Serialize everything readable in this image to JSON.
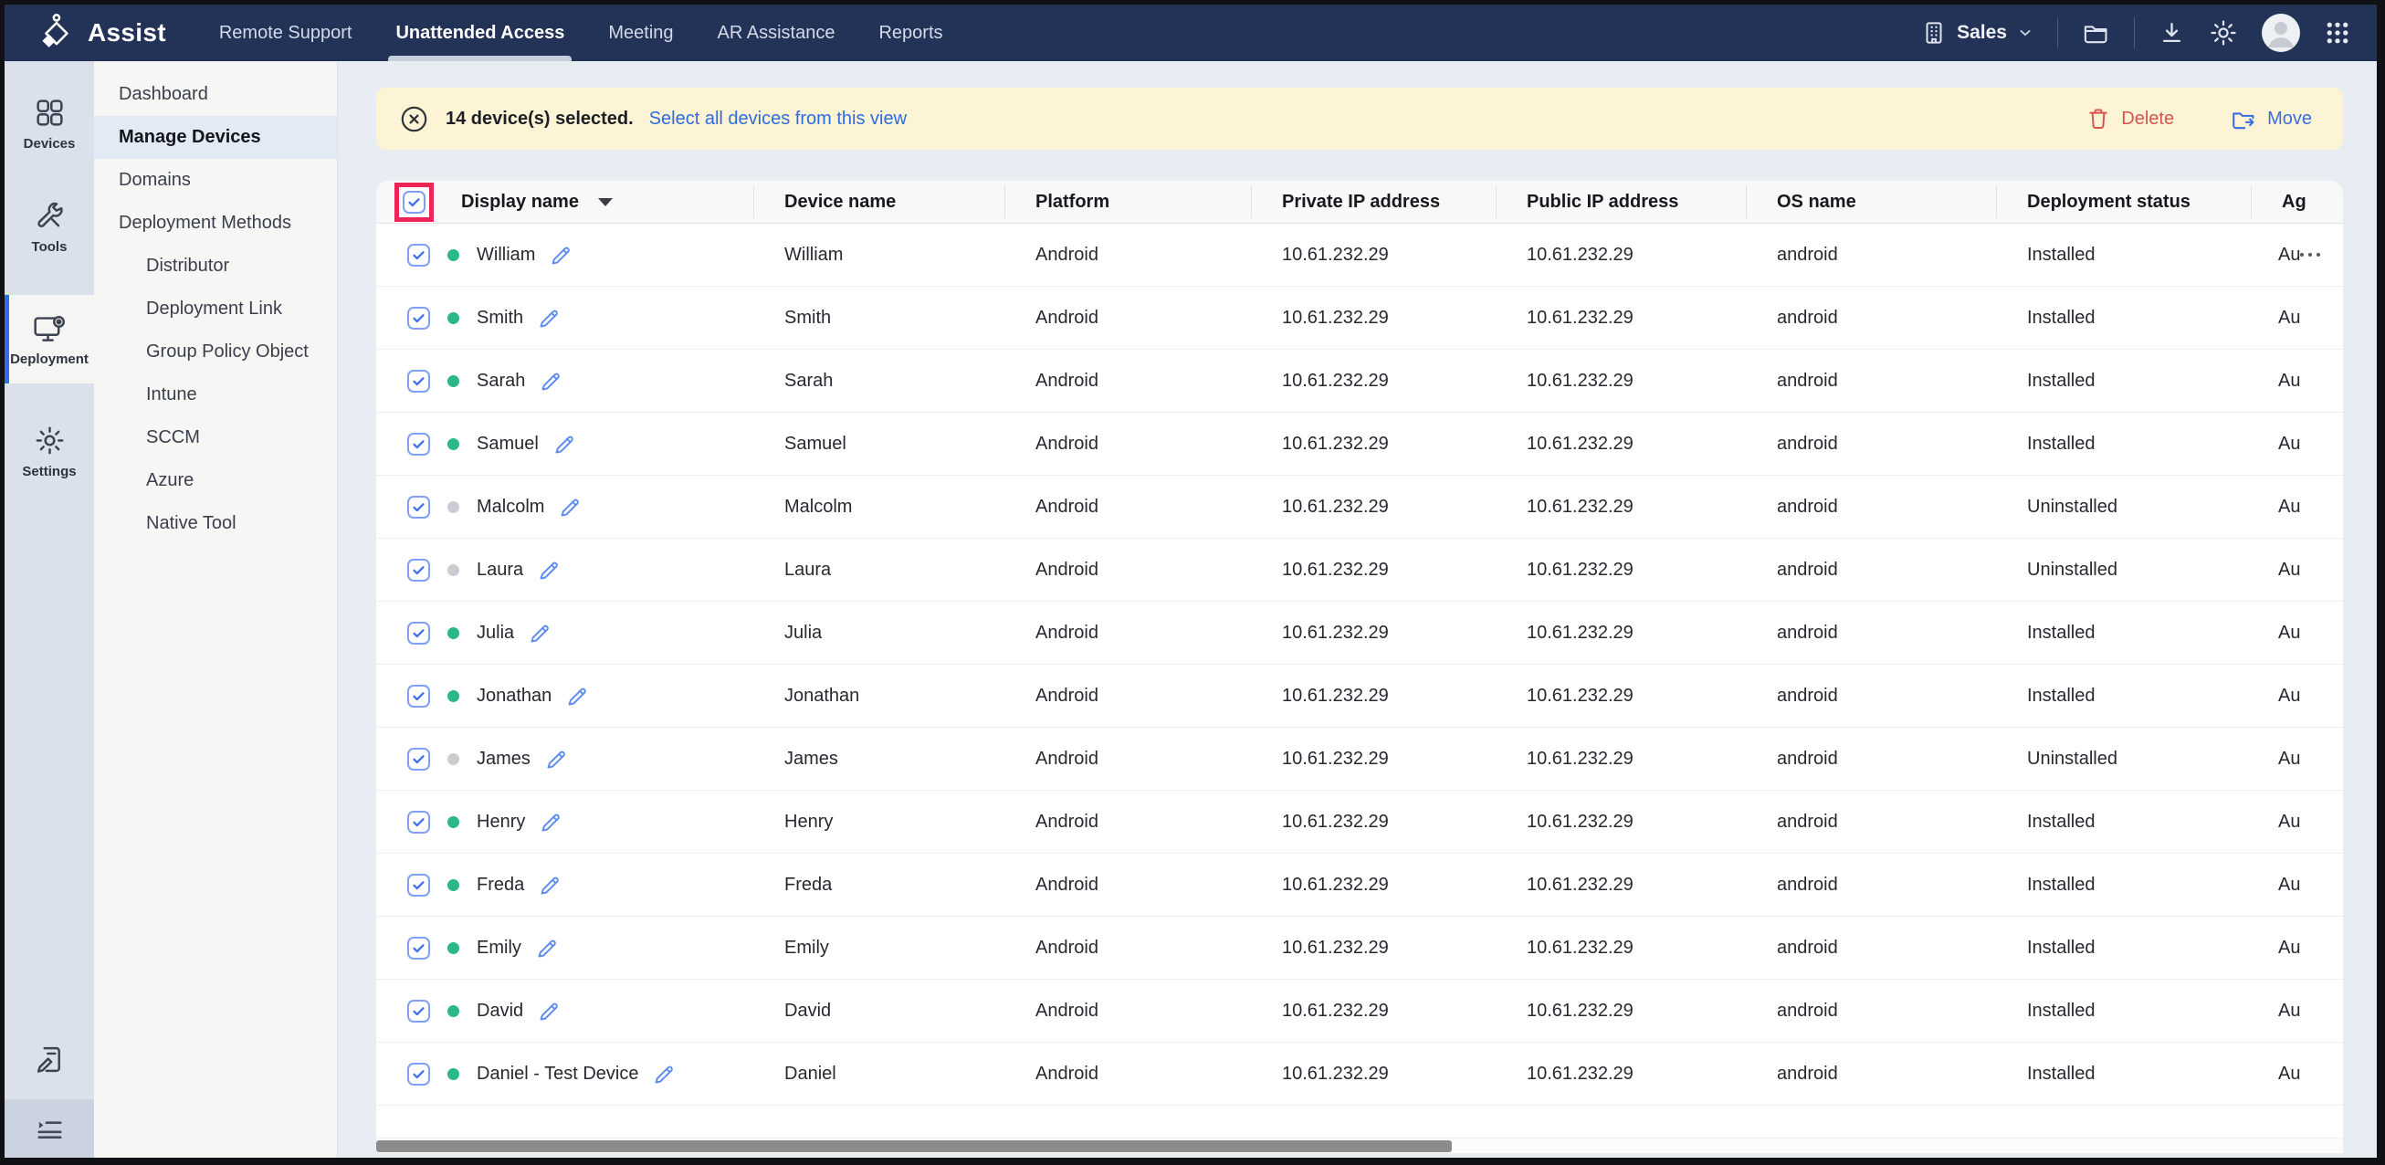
{
  "topbar": {
    "brand": "Assist",
    "nav": [
      {
        "label": "Remote Support",
        "active": false
      },
      {
        "label": "Unattended Access",
        "active": true
      },
      {
        "label": "Meeting",
        "active": false
      },
      {
        "label": "AR Assistance",
        "active": false
      },
      {
        "label": "Reports",
        "active": false
      }
    ],
    "portal_label": "Sales"
  },
  "rail": {
    "items": [
      {
        "label": "Devices",
        "icon": "devices-icon",
        "active": false
      },
      {
        "label": "Tools",
        "icon": "tools-icon",
        "active": false
      },
      {
        "label": "Deployment",
        "icon": "deployment-icon",
        "active": true
      },
      {
        "label": "Settings",
        "icon": "settings-icon",
        "active": false
      }
    ]
  },
  "sidebar": {
    "items": [
      {
        "label": "Dashboard",
        "active": false,
        "indent": false
      },
      {
        "label": "Manage Devices",
        "active": true,
        "indent": false
      },
      {
        "label": "Domains",
        "active": false,
        "indent": false
      },
      {
        "label": "Deployment Methods",
        "active": false,
        "indent": false
      },
      {
        "label": "Distributor",
        "active": false,
        "indent": true
      },
      {
        "label": "Deployment Link",
        "active": false,
        "indent": true
      },
      {
        "label": "Group Policy Object",
        "active": false,
        "indent": true
      },
      {
        "label": "Intune",
        "active": false,
        "indent": true
      },
      {
        "label": "SCCM",
        "active": false,
        "indent": true
      },
      {
        "label": "Azure",
        "active": false,
        "indent": true
      },
      {
        "label": "Native Tool",
        "active": false,
        "indent": true
      }
    ]
  },
  "banner": {
    "message": "14 device(s) selected.",
    "link_label": "Select all devices from this view",
    "delete_label": "Delete",
    "move_label": "Move"
  },
  "table": {
    "columns": [
      "Display name",
      "Device name",
      "Platform",
      "Private IP address",
      "Public IP address",
      "OS name",
      "Deployment status",
      "Ag"
    ],
    "rows": [
      {
        "display": "William",
        "online": true,
        "device": "William",
        "platform": "Android",
        "private_ip": "10.61.232.29",
        "public_ip": "10.61.232.29",
        "os": "android",
        "status": "Installed",
        "agent": "Au",
        "editable": true,
        "menu": true
      },
      {
        "display": "Smith",
        "online": true,
        "device": "Smith",
        "platform": "Android",
        "private_ip": "10.61.232.29",
        "public_ip": "10.61.232.29",
        "os": "android",
        "status": "Installed",
        "agent": "Au",
        "editable": false,
        "menu": false
      },
      {
        "display": "Sarah",
        "online": true,
        "device": "Sarah",
        "platform": "Android",
        "private_ip": "10.61.232.29",
        "public_ip": "10.61.232.29",
        "os": "android",
        "status": "Installed",
        "agent": "Au",
        "editable": false,
        "menu": false
      },
      {
        "display": "Samuel",
        "online": true,
        "device": "Samuel",
        "platform": "Android",
        "private_ip": "10.61.232.29",
        "public_ip": "10.61.232.29",
        "os": "android",
        "status": "Installed",
        "agent": "Au",
        "editable": false,
        "menu": false
      },
      {
        "display": "Malcolm",
        "online": false,
        "device": "Malcolm",
        "platform": "Android",
        "private_ip": "10.61.232.29",
        "public_ip": "10.61.232.29",
        "os": "android",
        "status": "Uninstalled",
        "agent": "Au",
        "editable": false,
        "menu": false
      },
      {
        "display": "Laura",
        "online": false,
        "device": "Laura",
        "platform": "Android",
        "private_ip": "10.61.232.29",
        "public_ip": "10.61.232.29",
        "os": "android",
        "status": "Uninstalled",
        "agent": "Au",
        "editable": false,
        "menu": false
      },
      {
        "display": "Julia",
        "online": true,
        "device": "Julia",
        "platform": "Android",
        "private_ip": "10.61.232.29",
        "public_ip": "10.61.232.29",
        "os": "android",
        "status": "Installed",
        "agent": "Au",
        "editable": false,
        "menu": false
      },
      {
        "display": "Jonathan",
        "online": true,
        "device": "Jonathan",
        "platform": "Android",
        "private_ip": "10.61.232.29",
        "public_ip": "10.61.232.29",
        "os": "android",
        "status": "Installed",
        "agent": "Au",
        "editable": false,
        "menu": false
      },
      {
        "display": "James",
        "online": false,
        "device": "James",
        "platform": "Android",
        "private_ip": "10.61.232.29",
        "public_ip": "10.61.232.29",
        "os": "android",
        "status": "Uninstalled",
        "agent": "Au",
        "editable": false,
        "menu": false
      },
      {
        "display": "Henry",
        "online": true,
        "device": "Henry",
        "platform": "Android",
        "private_ip": "10.61.232.29",
        "public_ip": "10.61.232.29",
        "os": "android",
        "status": "Installed",
        "agent": "Au",
        "editable": false,
        "menu": false
      },
      {
        "display": "Freda",
        "online": true,
        "device": "Freda",
        "platform": "Android",
        "private_ip": "10.61.232.29",
        "public_ip": "10.61.232.29",
        "os": "android",
        "status": "Installed",
        "agent": "Au",
        "editable": false,
        "menu": false
      },
      {
        "display": "Emily",
        "online": true,
        "device": "Emily",
        "platform": "Android",
        "private_ip": "10.61.232.29",
        "public_ip": "10.61.232.29",
        "os": "android",
        "status": "Installed",
        "agent": "Au",
        "editable": false,
        "menu": false
      },
      {
        "display": "David",
        "online": true,
        "device": "David",
        "platform": "Android",
        "private_ip": "10.61.232.29",
        "public_ip": "10.61.232.29",
        "os": "android",
        "status": "Installed",
        "agent": "Au",
        "editable": false,
        "menu": false
      },
      {
        "display": "Daniel - Test Device",
        "online": true,
        "device": "Daniel",
        "platform": "Android",
        "private_ip": "10.61.232.29",
        "public_ip": "10.61.232.29",
        "os": "android",
        "status": "Installed",
        "agent": "Au",
        "editable": false,
        "menu": false
      }
    ]
  },
  "colors": {
    "topbar": "#233257",
    "banner_bg": "#fcf4d4",
    "link_blue": "#2c6ce0",
    "delete_red": "#d9534f",
    "move_blue": "#3b6de0",
    "online_green": "#2bb886",
    "offline_gray": "#c9cdd1",
    "annotation_red": "#ee2456"
  }
}
